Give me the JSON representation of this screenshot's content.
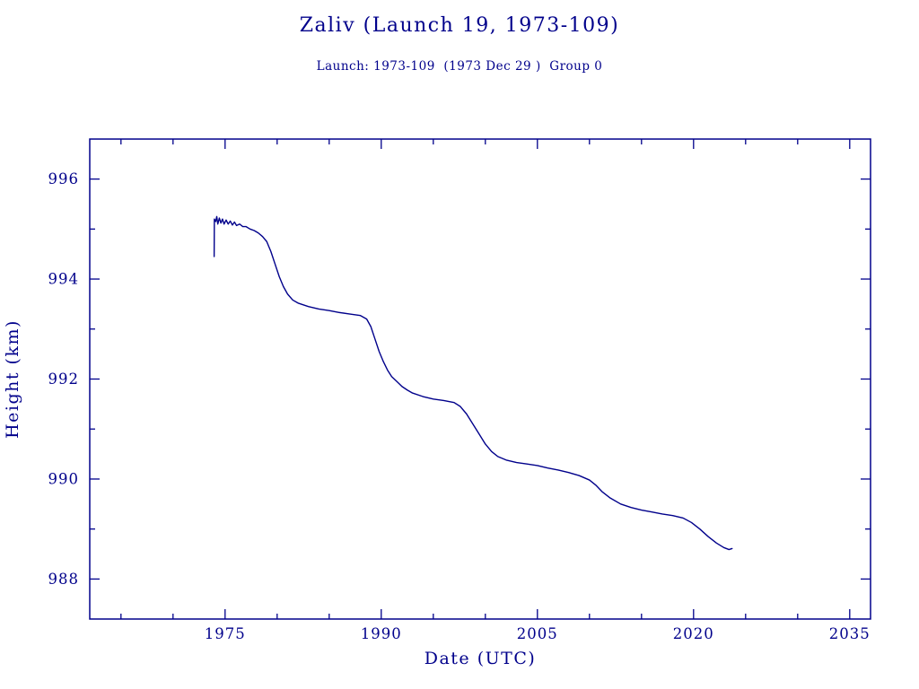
{
  "title": "Zaliv (Launch 19, 1973-109)",
  "subtitle": "Launch: 1973-109  (1973 Dec 29 )  Group 0",
  "colors": {
    "line": "#00008b",
    "text": "#00008b",
    "background": "#ffffff"
  },
  "chart_data": {
    "type": "line",
    "title": "Zaliv (Launch 19, 1973-109)",
    "subtitle": "Launch: 1973-109  (1973 Dec 29 )  Group 0",
    "xlabel": "Date (UTC)",
    "ylabel": "Height (km)",
    "xlim": [
      1962,
      2037
    ],
    "ylim": [
      987.2,
      996.8
    ],
    "x_ticks": [
      1975,
      1990,
      2005,
      2020,
      2035
    ],
    "y_ticks": [
      988,
      990,
      992,
      994,
      996
    ],
    "x_minor_ticks": [
      1965,
      1970,
      1980,
      1985,
      1995,
      2000,
      2010,
      2015,
      2025,
      2030
    ],
    "y_minor_ticks": [
      989,
      991,
      993,
      995
    ],
    "grid": false,
    "legend": false,
    "series": [
      {
        "name": "height",
        "points": [
          [
            1973.95,
            994.45
          ],
          [
            1973.97,
            995.2
          ],
          [
            1974.1,
            995.15
          ],
          [
            1974.2,
            995.25
          ],
          [
            1974.3,
            995.1
          ],
          [
            1974.45,
            995.22
          ],
          [
            1974.6,
            995.12
          ],
          [
            1974.75,
            995.2
          ],
          [
            1974.9,
            995.1
          ],
          [
            1975.1,
            995.18
          ],
          [
            1975.3,
            995.1
          ],
          [
            1975.5,
            995.16
          ],
          [
            1975.7,
            995.08
          ],
          [
            1975.9,
            995.14
          ],
          [
            1976.1,
            995.07
          ],
          [
            1976.4,
            995.1
          ],
          [
            1976.7,
            995.05
          ],
          [
            1977.0,
            995.05
          ],
          [
            1977.4,
            995.0
          ],
          [
            1977.8,
            994.97
          ],
          [
            1978.2,
            994.92
          ],
          [
            1978.6,
            994.85
          ],
          [
            1979.0,
            994.75
          ],
          [
            1979.4,
            994.55
          ],
          [
            1979.8,
            994.3
          ],
          [
            1980.2,
            994.05
          ],
          [
            1980.6,
            993.85
          ],
          [
            1981.0,
            993.7
          ],
          [
            1981.5,
            993.58
          ],
          [
            1982.0,
            993.52
          ],
          [
            1983.0,
            993.45
          ],
          [
            1984.0,
            993.4
          ],
          [
            1985.0,
            993.37
          ],
          [
            1986.0,
            993.33
          ],
          [
            1987.0,
            993.3
          ],
          [
            1988.0,
            993.27
          ],
          [
            1988.6,
            993.2
          ],
          [
            1989.0,
            993.05
          ],
          [
            1989.4,
            992.8
          ],
          [
            1989.8,
            992.55
          ],
          [
            1990.2,
            992.35
          ],
          [
            1990.6,
            992.18
          ],
          [
            1991.0,
            992.05
          ],
          [
            1991.5,
            991.95
          ],
          [
            1992.0,
            991.85
          ],
          [
            1992.5,
            991.78
          ],
          [
            1993.0,
            991.72
          ],
          [
            1994.0,
            991.65
          ],
          [
            1995.0,
            991.6
          ],
          [
            1996.0,
            991.57
          ],
          [
            1997.0,
            991.53
          ],
          [
            1997.6,
            991.45
          ],
          [
            1998.2,
            991.3
          ],
          [
            1998.8,
            991.1
          ],
          [
            1999.4,
            990.9
          ],
          [
            2000.0,
            990.7
          ],
          [
            2000.6,
            990.55
          ],
          [
            2001.2,
            990.45
          ],
          [
            2002.0,
            990.38
          ],
          [
            2003.0,
            990.33
          ],
          [
            2004.0,
            990.3
          ],
          [
            2005.0,
            990.27
          ],
          [
            2006.0,
            990.22
          ],
          [
            2007.0,
            990.18
          ],
          [
            2008.0,
            990.13
          ],
          [
            2009.0,
            990.07
          ],
          [
            2010.0,
            989.98
          ],
          [
            2010.6,
            989.88
          ],
          [
            2011.2,
            989.75
          ],
          [
            2012.0,
            989.62
          ],
          [
            2013.0,
            989.5
          ],
          [
            2014.0,
            989.43
          ],
          [
            2015.0,
            989.38
          ],
          [
            2016.0,
            989.34
          ],
          [
            2017.0,
            989.3
          ],
          [
            2018.0,
            989.27
          ],
          [
            2019.0,
            989.22
          ],
          [
            2019.8,
            989.13
          ],
          [
            2020.6,
            989.0
          ],
          [
            2021.4,
            988.85
          ],
          [
            2022.2,
            988.72
          ],
          [
            2022.9,
            988.63
          ],
          [
            2023.4,
            988.59
          ],
          [
            2023.7,
            988.61
          ]
        ]
      }
    ]
  }
}
